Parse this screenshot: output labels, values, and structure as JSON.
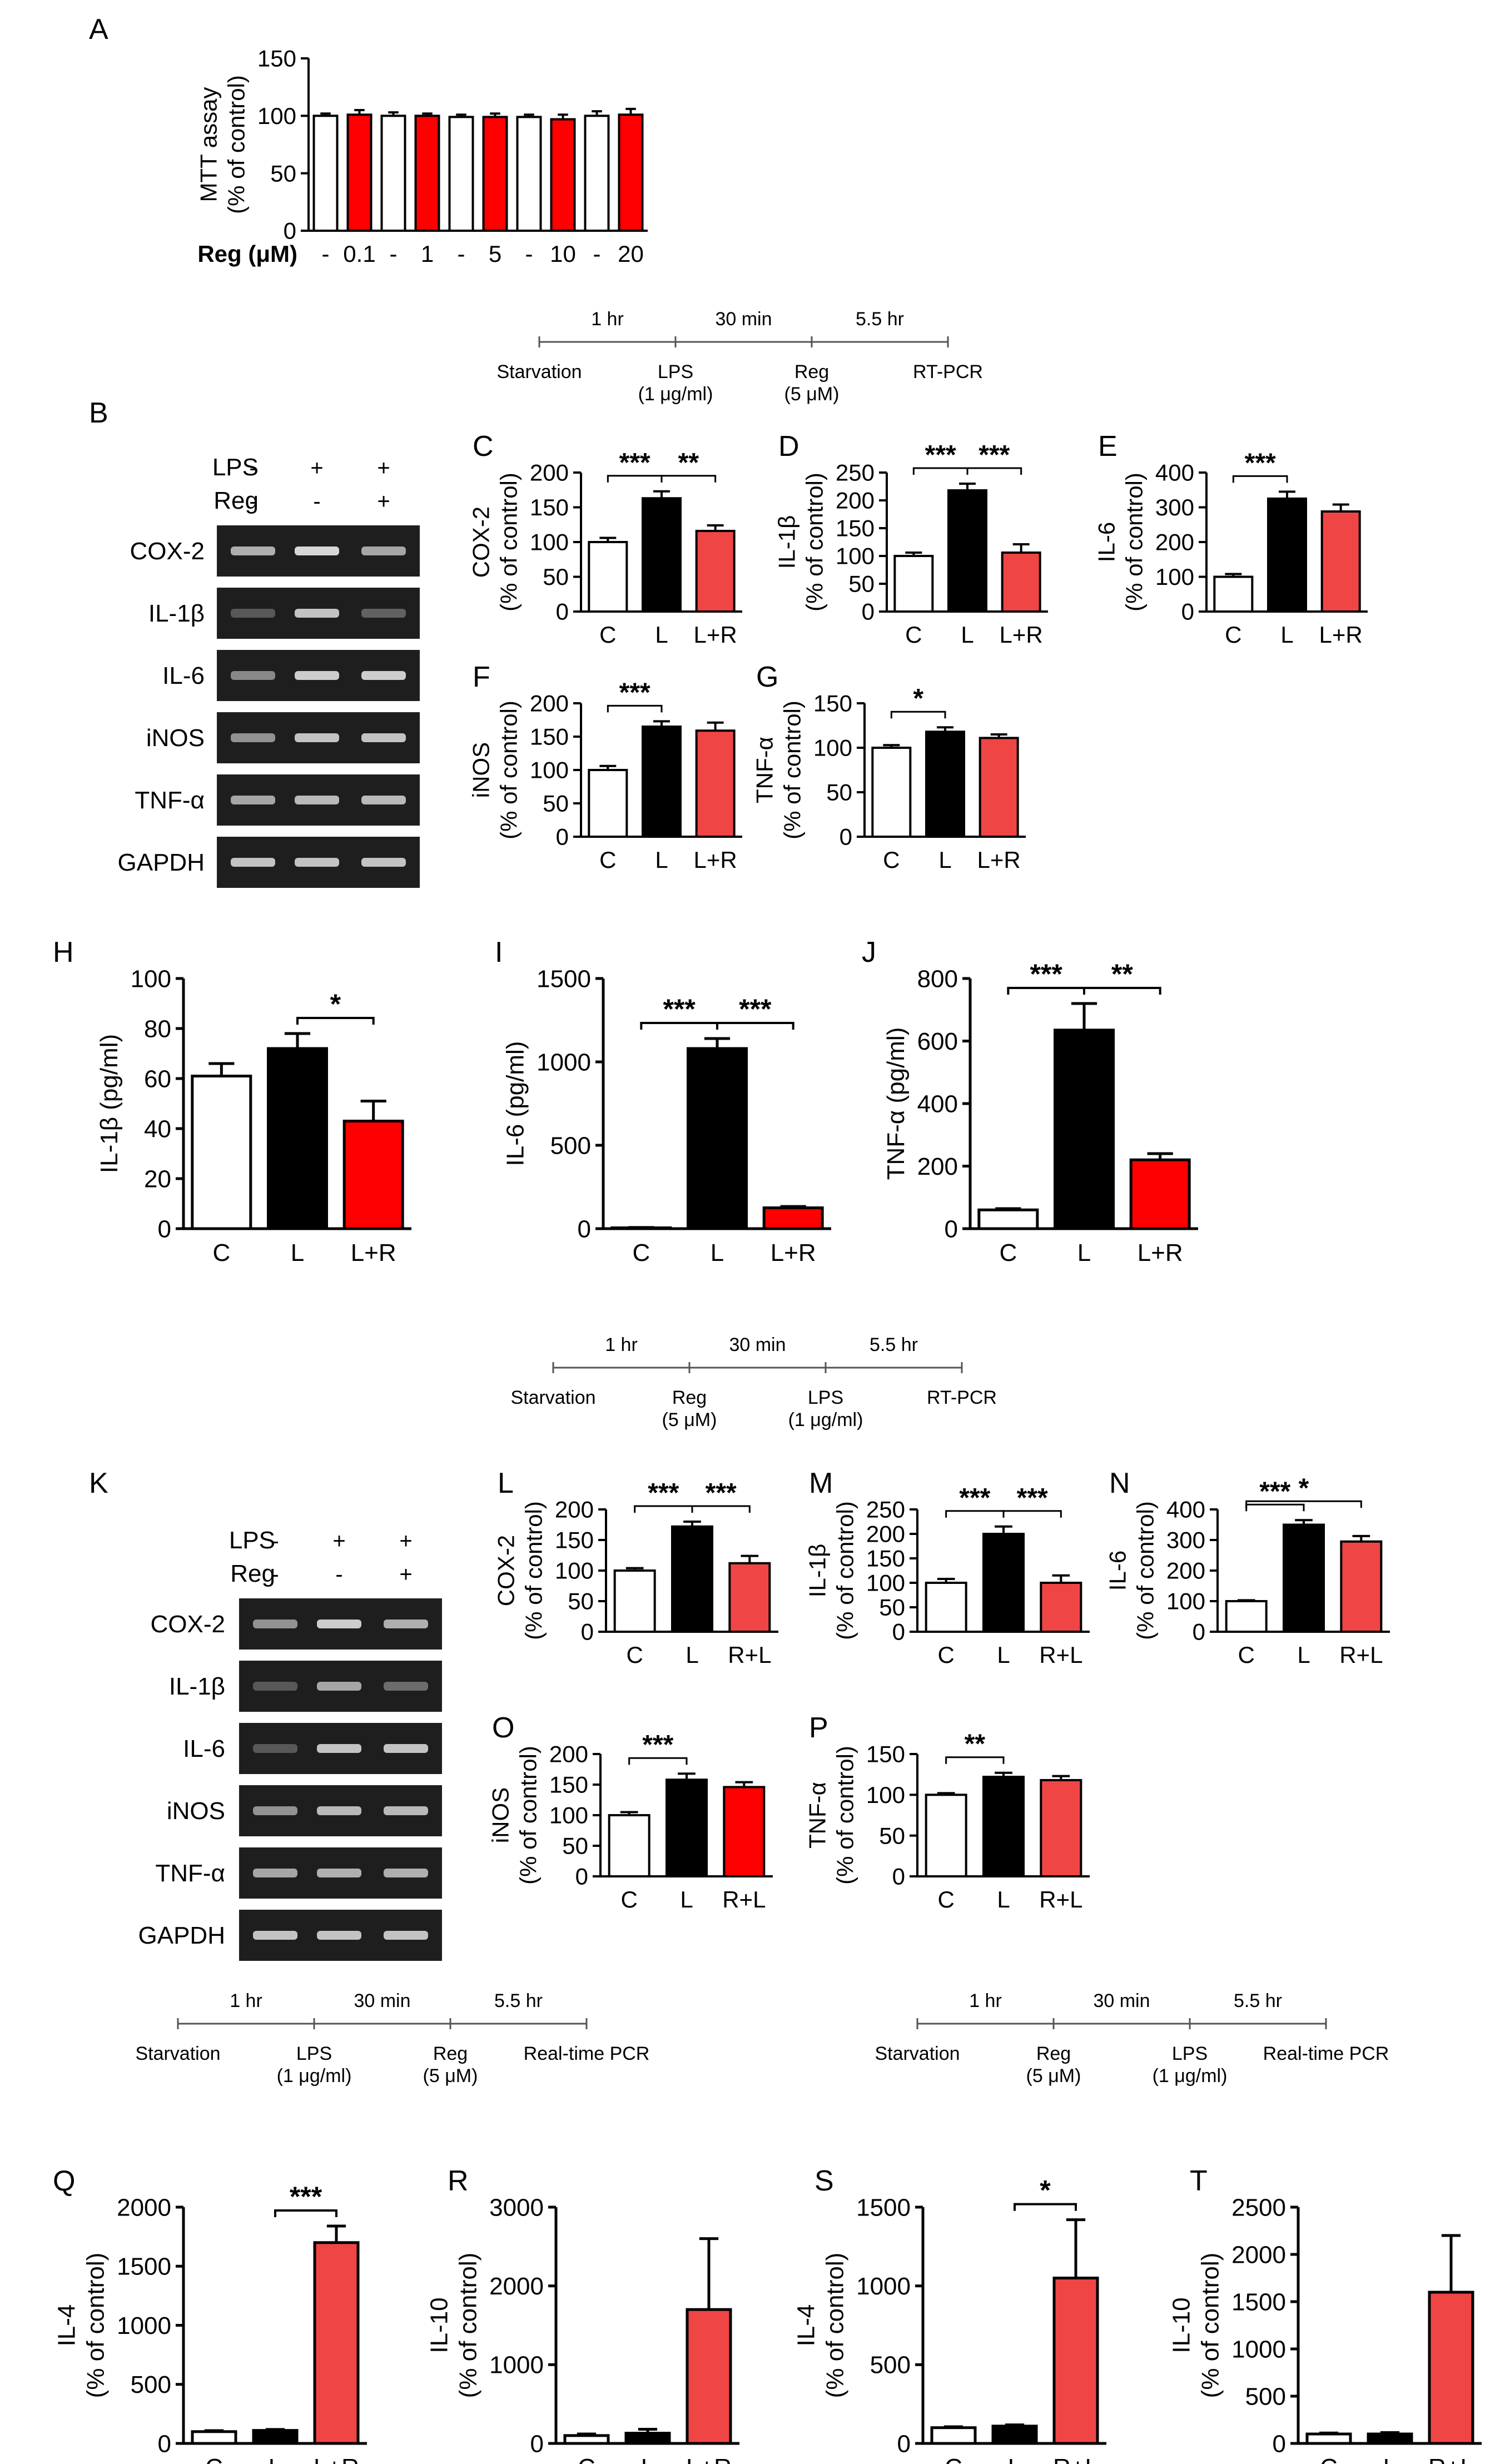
{
  "colors": {
    "white": "#ffffff",
    "black": "#000000",
    "red": "#ff0000",
    "light_red": "#f04545",
    "band": "#e0e0e0"
  },
  "protocols": [
    {
      "times": [
        "1 hr",
        "30 min",
        "5.5 hr"
      ],
      "steps": [
        [
          "Starvation"
        ],
        [
          "LPS",
          "(1 μg/ml)"
        ],
        [
          "Reg",
          "(5 μM)"
        ],
        [
          "RT-PCR"
        ]
      ]
    },
    {
      "times": [
        "1 hr",
        "30 min",
        "5.5 hr"
      ],
      "steps": [
        [
          "Starvation"
        ],
        [
          "Reg",
          "(5 μM)"
        ],
        [
          "LPS",
          "(1 μg/ml)"
        ],
        [
          "RT-PCR"
        ]
      ]
    },
    {
      "times": [
        "1 hr",
        "30 min",
        "5.5 hr"
      ],
      "steps": [
        [
          "Starvation"
        ],
        [
          "LPS",
          "(1 μg/ml)"
        ],
        [
          "Reg",
          "(5 μM)"
        ],
        [
          "Real-time PCR"
        ]
      ]
    },
    {
      "times": [
        "1 hr",
        "30 min",
        "5.5 hr"
      ],
      "steps": [
        [
          "Starvation"
        ],
        [
          "Reg",
          "(5 μM)"
        ],
        [
          "LPS",
          "(1 μg/ml)"
        ],
        [
          "Real-time PCR"
        ]
      ]
    }
  ],
  "gels": [
    {
      "letter": "B",
      "treatments": [
        {
          "label": "LPS",
          "marks": [
            "-",
            "+",
            "+"
          ]
        },
        {
          "label": "Reg",
          "marks": [
            "-",
            "-",
            "+"
          ]
        }
      ],
      "genes": [
        "COX-2",
        "IL-1β",
        "IL-6",
        "iNOS",
        "TNF-α",
        "GAPDH"
      ],
      "intensity": [
        [
          0.75,
          0.95,
          0.7
        ],
        [
          0.3,
          0.85,
          0.35
        ],
        [
          0.55,
          0.9,
          0.9
        ],
        [
          0.6,
          0.85,
          0.85
        ],
        [
          0.7,
          0.8,
          0.8
        ],
        [
          0.85,
          0.85,
          0.85
        ]
      ]
    },
    {
      "letter": "K",
      "treatments": [
        {
          "label": "LPS",
          "marks": [
            "-",
            "+",
            "+"
          ]
        },
        {
          "label": "Reg",
          "marks": [
            "-",
            "-",
            "+"
          ]
        }
      ],
      "genes": [
        "COX-2",
        "IL-1β",
        "IL-6",
        "iNOS",
        "TNF-α",
        "GAPDH"
      ],
      "intensity": [
        [
          0.6,
          0.9,
          0.75
        ],
        [
          0.3,
          0.7,
          0.4
        ],
        [
          0.3,
          0.85,
          0.85
        ],
        [
          0.6,
          0.8,
          0.8
        ],
        [
          0.7,
          0.75,
          0.75
        ],
        [
          0.85,
          0.85,
          0.85
        ]
      ]
    }
  ],
  "chart_data": [
    {
      "panel": "A",
      "type": "bar",
      "ylabel": [
        "MTT assay",
        "(% of control)"
      ],
      "ylim": [
        0,
        150
      ],
      "yticks": [
        0,
        50,
        100,
        150
      ],
      "row_title": "Reg (μM)",
      "categories": [
        "-",
        "0.1",
        "-",
        "1",
        "-",
        "5",
        "-",
        "10",
        "-",
        "20"
      ],
      "values": [
        100,
        101,
        100,
        100,
        99,
        99,
        99,
        97,
        100,
        101
      ],
      "errors": [
        2,
        4,
        3,
        2,
        2,
        3,
        2,
        4,
        4,
        5
      ],
      "colors": [
        "white",
        "red",
        "white",
        "red",
        "white",
        "red",
        "white",
        "red",
        "white",
        "red"
      ],
      "sig": []
    },
    {
      "panel": "C",
      "type": "bar",
      "ylabel": [
        "COX-2",
        "(% of control)"
      ],
      "ylim": [
        0,
        200
      ],
      "yticks": [
        0,
        50,
        100,
        150,
        200
      ],
      "categories": [
        "C",
        "L",
        "L+R"
      ],
      "values": [
        100,
        163,
        116
      ],
      "errors": [
        6,
        10,
        8
      ],
      "colors": [
        "white",
        "black",
        "light_red"
      ],
      "sig": [
        {
          "from": 0,
          "to": 1,
          "label": "***"
        },
        {
          "from": 1,
          "to": 2,
          "label": "**"
        }
      ]
    },
    {
      "panel": "D",
      "type": "bar",
      "ylabel": [
        "IL-1β",
        "(% of control)"
      ],
      "ylim": [
        0,
        250
      ],
      "yticks": [
        0,
        50,
        100,
        150,
        200,
        250
      ],
      "categories": [
        "C",
        "L",
        "L+R"
      ],
      "values": [
        100,
        218,
        106
      ],
      "errors": [
        6,
        12,
        15
      ],
      "colors": [
        "white",
        "black",
        "light_red"
      ],
      "sig": [
        {
          "from": 0,
          "to": 1,
          "label": "***"
        },
        {
          "from": 1,
          "to": 2,
          "label": "***"
        }
      ]
    },
    {
      "panel": "E",
      "type": "bar",
      "ylabel": [
        "IL-6",
        "(% of control)"
      ],
      "ylim": [
        0,
        400
      ],
      "yticks": [
        0,
        100,
        200,
        300,
        400
      ],
      "categories": [
        "C",
        "L",
        "L+R"
      ],
      "values": [
        100,
        325,
        288
      ],
      "errors": [
        8,
        20,
        20
      ],
      "colors": [
        "white",
        "black",
        "light_red"
      ],
      "sig": [
        {
          "from": 0,
          "to": 1,
          "label": "***"
        }
      ]
    },
    {
      "panel": "F",
      "type": "bar",
      "ylabel": [
        "iNOS",
        "(% of control)"
      ],
      "ylim": [
        0,
        200
      ],
      "yticks": [
        0,
        50,
        100,
        150,
        200
      ],
      "categories": [
        "C",
        "L",
        "L+R"
      ],
      "values": [
        100,
        165,
        159
      ],
      "errors": [
        6,
        8,
        12
      ],
      "colors": [
        "white",
        "black",
        "light_red"
      ],
      "sig": [
        {
          "from": 0,
          "to": 1,
          "label": "***"
        }
      ]
    },
    {
      "panel": "G",
      "type": "bar",
      "ylabel": [
        "TNF-α",
        "(% of control)"
      ],
      "ylim": [
        0,
        150
      ],
      "yticks": [
        0,
        50,
        100,
        150
      ],
      "categories": [
        "C",
        "L",
        "L+R"
      ],
      "values": [
        100,
        118,
        111
      ],
      "errors": [
        3,
        5,
        4
      ],
      "colors": [
        "white",
        "black",
        "light_red"
      ],
      "sig": [
        {
          "from": 0,
          "to": 1,
          "label": "*"
        }
      ]
    },
    {
      "panel": "H",
      "type": "bar",
      "ylabel": [
        "IL-1β (pg/ml)"
      ],
      "ylim": [
        0,
        100
      ],
      "yticks": [
        0,
        20,
        40,
        60,
        80,
        100
      ],
      "categories": [
        "C",
        "L",
        "L+R"
      ],
      "values": [
        61,
        72,
        43
      ],
      "errors": [
        5,
        6,
        8
      ],
      "colors": [
        "white",
        "black",
        "red"
      ],
      "sig": [
        {
          "from": 1,
          "to": 2,
          "label": "*"
        }
      ]
    },
    {
      "panel": "I",
      "type": "bar",
      "ylabel": [
        "IL-6 (pg/ml)"
      ],
      "ylim": [
        0,
        1500
      ],
      "yticks": [
        0,
        500,
        1000,
        1500
      ],
      "categories": [
        "C",
        "L",
        "L+R"
      ],
      "values": [
        5,
        1080,
        125
      ],
      "errors": [
        2,
        60,
        8
      ],
      "colors": [
        "white",
        "black",
        "red"
      ],
      "sig": [
        {
          "from": 0,
          "to": 1,
          "label": "***"
        },
        {
          "from": 1,
          "to": 2,
          "label": "***"
        }
      ]
    },
    {
      "panel": "J",
      "type": "bar",
      "ylabel": [
        "TNF-α (pg/ml)"
      ],
      "ylim": [
        0,
        800
      ],
      "yticks": [
        0,
        200,
        400,
        600,
        800
      ],
      "categories": [
        "C",
        "L",
        "L+R"
      ],
      "values": [
        60,
        635,
        220
      ],
      "errors": [
        4,
        85,
        20
      ],
      "colors": [
        "white",
        "black",
        "red"
      ],
      "sig": [
        {
          "from": 0,
          "to": 1,
          "label": "***"
        },
        {
          "from": 1,
          "to": 2,
          "label": "**"
        }
      ]
    },
    {
      "panel": "L",
      "type": "bar",
      "ylabel": [
        "COX-2",
        "(% of control)"
      ],
      "ylim": [
        0,
        200
      ],
      "yticks": [
        0,
        50,
        100,
        150,
        200
      ],
      "categories": [
        "C",
        "L",
        "R+L"
      ],
      "values": [
        100,
        172,
        112
      ],
      "errors": [
        4,
        8,
        12
      ],
      "colors": [
        "white",
        "black",
        "light_red"
      ],
      "sig": [
        {
          "from": 0,
          "to": 1,
          "label": "***"
        },
        {
          "from": 1,
          "to": 2,
          "label": "***"
        }
      ]
    },
    {
      "panel": "M",
      "type": "bar",
      "ylabel": [
        "IL-1β",
        "(% of control)"
      ],
      "ylim": [
        0,
        250
      ],
      "yticks": [
        0,
        50,
        100,
        150,
        200,
        250
      ],
      "categories": [
        "C",
        "L",
        "R+L"
      ],
      "values": [
        100,
        200,
        100
      ],
      "errors": [
        8,
        15,
        15
      ],
      "colors": [
        "white",
        "black",
        "light_red"
      ],
      "sig": [
        {
          "from": 0,
          "to": 1,
          "label": "***"
        },
        {
          "from": 1,
          "to": 2,
          "label": "***"
        }
      ]
    },
    {
      "panel": "N",
      "type": "bar",
      "ylabel": [
        "IL-6",
        "(% of control)"
      ],
      "ylim": [
        0,
        400
      ],
      "yticks": [
        0,
        100,
        200,
        300,
        400
      ],
      "categories": [
        "C",
        "L",
        "R+L"
      ],
      "values": [
        100,
        350,
        295
      ],
      "errors": [
        3,
        15,
        18
      ],
      "colors": [
        "white",
        "black",
        "light_red"
      ],
      "sig": [
        {
          "from": 0,
          "to": 1,
          "label": "***"
        },
        {
          "from": 0,
          "to": 2,
          "label": "*"
        }
      ]
    },
    {
      "panel": "O",
      "type": "bar",
      "ylabel": [
        "iNOS",
        "(% of control)"
      ],
      "ylim": [
        0,
        200
      ],
      "yticks": [
        0,
        50,
        100,
        150,
        200
      ],
      "categories": [
        "C",
        "L",
        "R+L"
      ],
      "values": [
        100,
        158,
        146
      ],
      "errors": [
        5,
        10,
        8
      ],
      "colors": [
        "white",
        "black",
        "red"
      ],
      "sig": [
        {
          "from": 0,
          "to": 1,
          "label": "***"
        }
      ]
    },
    {
      "panel": "P",
      "type": "bar",
      "ylabel": [
        "TNF-α",
        "(% of control)"
      ],
      "ylim": [
        0,
        150
      ],
      "yticks": [
        0,
        50,
        100,
        150
      ],
      "categories": [
        "C",
        "L",
        "R+L"
      ],
      "values": [
        100,
        122,
        118
      ],
      "errors": [
        2,
        5,
        5
      ],
      "colors": [
        "white",
        "black",
        "light_red"
      ],
      "sig": [
        {
          "from": 0,
          "to": 1,
          "label": "**"
        }
      ]
    },
    {
      "panel": "Q",
      "type": "bar",
      "ylabel": [
        "IL-4",
        "(% of control)"
      ],
      "ylim": [
        0,
        2000
      ],
      "yticks": [
        0,
        500,
        1000,
        1500,
        2000
      ],
      "categories": [
        "C",
        "L",
        "L+R"
      ],
      "values": [
        100,
        110,
        1700
      ],
      "errors": [
        8,
        8,
        140
      ],
      "colors": [
        "white",
        "black",
        "light_red"
      ],
      "sig": [
        {
          "from": 1,
          "to": 2,
          "label": "***"
        }
      ]
    },
    {
      "panel": "R",
      "type": "bar",
      "ylabel": [
        "IL-10",
        "(% of control)"
      ],
      "ylim": [
        0,
        3000
      ],
      "yticks": [
        0,
        1000,
        2000,
        3000
      ],
      "categories": [
        "C",
        "L",
        "L+R"
      ],
      "values": [
        100,
        130,
        1700
      ],
      "errors": [
        20,
        50,
        900
      ],
      "colors": [
        "white",
        "black",
        "light_red"
      ],
      "sig": []
    },
    {
      "panel": "S",
      "type": "bar",
      "ylabel": [
        "IL-4",
        "(% of control)"
      ],
      "ylim": [
        0,
        1500
      ],
      "yticks": [
        0,
        500,
        1000,
        1500
      ],
      "categories": [
        "C",
        "L",
        "R+L"
      ],
      "values": [
        100,
        110,
        1050
      ],
      "errors": [
        6,
        8,
        370
      ],
      "colors": [
        "white",
        "black",
        "light_red"
      ],
      "sig": [
        {
          "from": 1,
          "to": 2,
          "label": "*"
        }
      ]
    },
    {
      "panel": "T",
      "type": "bar",
      "ylabel": [
        "IL-10",
        "(% of control)"
      ],
      "ylim": [
        0,
        2500
      ],
      "yticks": [
        0,
        500,
        1000,
        1500,
        2000,
        2500
      ],
      "categories": [
        "C",
        "L",
        "R+L"
      ],
      "values": [
        100,
        100,
        1600
      ],
      "errors": [
        10,
        15,
        600
      ],
      "colors": [
        "white",
        "black",
        "light_red"
      ],
      "sig": []
    }
  ]
}
